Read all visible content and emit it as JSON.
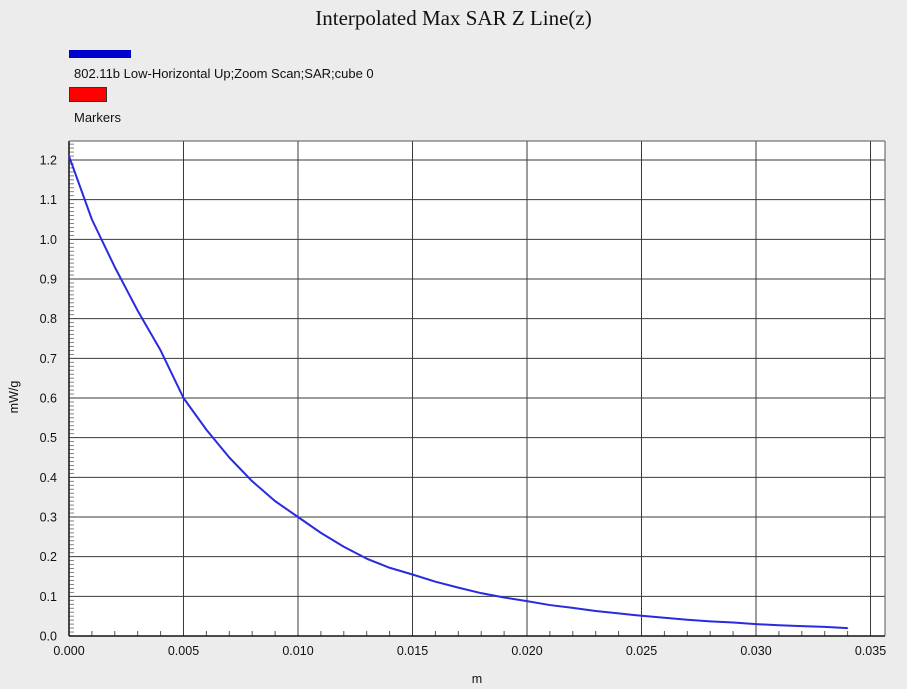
{
  "chart_data": {
    "type": "line",
    "title": "Interpolated Max SAR Z Line(z)",
    "xlabel": "m",
    "ylabel": "mW/g",
    "xlim": [
      0.0,
      0.035
    ],
    "ylim": [
      0.0,
      1.25
    ],
    "x_ticks": [
      "0.000",
      "0.005",
      "0.010",
      "0.015",
      "0.020",
      "0.025",
      "0.030",
      "0.035"
    ],
    "y_ticks": [
      "0.0",
      "0.1",
      "0.2",
      "0.3",
      "0.4",
      "0.5",
      "0.6",
      "0.7",
      "0.8",
      "0.9",
      "1.0",
      "1.1",
      "1.2"
    ],
    "grid": true,
    "legend_position": "top-left",
    "legend": [
      {
        "label": "802.11b Low-Horizontal Up;Zoom Scan;SAR;cube 0",
        "color": "#0000cc"
      },
      {
        "label": "Markers",
        "color": "#ff0000"
      }
    ],
    "series": [
      {
        "name": "802.11b Low-Horizontal Up;Zoom Scan;SAR;cube 0",
        "color": "#2a2ae0",
        "x": [
          0.0,
          0.001,
          0.002,
          0.003,
          0.004,
          0.005,
          0.006,
          0.007,
          0.008,
          0.009,
          0.01,
          0.011,
          0.012,
          0.013,
          0.014,
          0.015,
          0.016,
          0.017,
          0.018,
          0.019,
          0.02,
          0.021,
          0.022,
          0.023,
          0.024,
          0.025,
          0.026,
          0.027,
          0.028,
          0.029,
          0.03,
          0.031,
          0.032,
          0.033,
          0.034
        ],
        "y": [
          1.21,
          1.05,
          0.93,
          0.82,
          0.72,
          0.6,
          0.52,
          0.45,
          0.39,
          0.34,
          0.3,
          0.26,
          0.225,
          0.195,
          0.172,
          0.155,
          0.137,
          0.122,
          0.108,
          0.097,
          0.088,
          0.078,
          0.071,
          0.063,
          0.057,
          0.051,
          0.046,
          0.041,
          0.037,
          0.034,
          0.03,
          0.027,
          0.025,
          0.023,
          0.02
        ]
      }
    ]
  }
}
